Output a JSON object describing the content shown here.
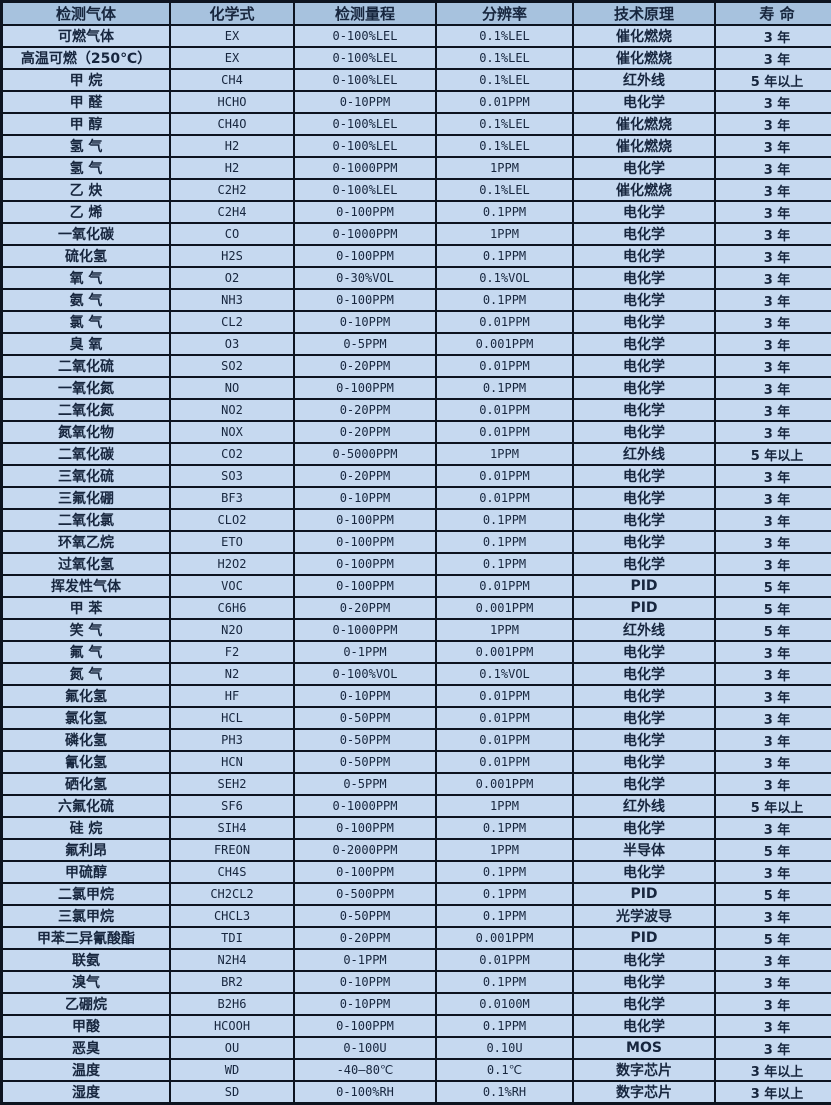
{
  "colors": {
    "row_background": "#c6d9f0",
    "header_background": "#a7c2de",
    "border": "#0d1420",
    "text": "#17263e"
  },
  "table": {
    "columns": [
      "检测气体",
      "化学式",
      "检测量程",
      "分辨率",
      "技术原理",
      "寿 命"
    ],
    "rows": [
      [
        "可燃气体",
        "EX",
        "0-100%LEL",
        "0.1%LEL",
        "催化燃烧",
        "3 年"
      ],
      [
        "高温可燃（250℃）",
        "EX",
        "0-100%LEL",
        "0.1%LEL",
        "催化燃烧",
        "3 年"
      ],
      [
        "甲 烷",
        "CH4",
        "0-100%LEL",
        "0.1%LEL",
        "红外线",
        "5 年以上"
      ],
      [
        "甲 醛",
        "HCHO",
        "0-10PPM",
        "0.01PPM",
        "电化学",
        "3 年"
      ],
      [
        "甲 醇",
        "CH4O",
        "0-100%LEL",
        "0.1%LEL",
        "催化燃烧",
        "3 年"
      ],
      [
        "氢 气",
        "H2",
        "0-100%LEL",
        "0.1%LEL",
        "催化燃烧",
        "3 年"
      ],
      [
        "氢 气",
        "H2",
        "0-1000PPM",
        "1PPM",
        "电化学",
        "3 年"
      ],
      [
        "乙 炔",
        "C2H2",
        "0-100%LEL",
        "0.1%LEL",
        "催化燃烧",
        "3 年"
      ],
      [
        "乙 烯",
        "C2H4",
        "0-100PPM",
        "0.1PPM",
        "电化学",
        "3 年"
      ],
      [
        "一氧化碳",
        "CO",
        "0-1000PPM",
        "1PPM",
        "电化学",
        "3 年"
      ],
      [
        "硫化氢",
        "H2S",
        "0-100PPM",
        "0.1PPM",
        "电化学",
        "3 年"
      ],
      [
        "氧 气",
        "O2",
        "0-30%VOL",
        "0.1%VOL",
        "电化学",
        "3 年"
      ],
      [
        "氨 气",
        "NH3",
        "0-100PPM",
        "0.1PPM",
        "电化学",
        "3 年"
      ],
      [
        "氯 气",
        "CL2",
        "0-10PPM",
        "0.01PPM",
        "电化学",
        "3 年"
      ],
      [
        "臭 氧",
        "O3",
        "0-5PPM",
        "0.001PPM",
        "电化学",
        "3 年"
      ],
      [
        "二氧化硫",
        "SO2",
        "0-20PPM",
        "0.01PPM",
        "电化学",
        "3 年"
      ],
      [
        "一氧化氮",
        "NO",
        "0-100PPM",
        "0.1PPM",
        "电化学",
        "3 年"
      ],
      [
        "二氧化氮",
        "NO2",
        "0-20PPM",
        "0.01PPM",
        "电化学",
        "3 年"
      ],
      [
        "氮氧化物",
        "NOX",
        "0-20PPM",
        "0.01PPM",
        "电化学",
        "3 年"
      ],
      [
        "二氧化碳",
        "CO2",
        "0-5000PPM",
        "1PPM",
        "红外线",
        "5 年以上"
      ],
      [
        "三氧化硫",
        "SO3",
        "0-20PPM",
        "0.01PPM",
        "电化学",
        "3 年"
      ],
      [
        "三氟化硼",
        "BF3",
        "0-10PPM",
        "0.01PPM",
        "电化学",
        "3 年"
      ],
      [
        "二氧化氯",
        "CLO2",
        "0-100PPM",
        "0.1PPM",
        "电化学",
        "3 年"
      ],
      [
        "环氧乙烷",
        "ETO",
        "0-100PPM",
        "0.1PPM",
        "电化学",
        "3 年"
      ],
      [
        "过氧化氢",
        "H2O2",
        "0-100PPM",
        "0.1PPM",
        "电化学",
        "3 年"
      ],
      [
        "挥发性气体",
        "VOC",
        "0-100PPM",
        "0.01PPM",
        "PID",
        "5 年"
      ],
      [
        "甲 苯",
        "C6H6",
        "0-20PPM",
        "0.001PPM",
        "PID",
        "5 年"
      ],
      [
        "笑 气",
        "N2O",
        "0-1000PPM",
        "1PPM",
        "红外线",
        "5 年"
      ],
      [
        "氟 气",
        "F2",
        "0-1PPM",
        "0.001PPM",
        "电化学",
        "3 年"
      ],
      [
        "氮 气",
        "N2",
        "0-100%VOL",
        "0.1%VOL",
        "电化学",
        "3 年"
      ],
      [
        "氟化氢",
        "HF",
        "0-10PPM",
        "0.01PPM",
        "电化学",
        "3 年"
      ],
      [
        "氯化氢",
        "HCL",
        "0-50PPM",
        "0.01PPM",
        "电化学",
        "3 年"
      ],
      [
        "磷化氢",
        "PH3",
        "0-50PPM",
        "0.01PPM",
        "电化学",
        "3 年"
      ],
      [
        "氰化氢",
        "HCN",
        "0-50PPM",
        "0.01PPM",
        "电化学",
        "3 年"
      ],
      [
        "硒化氢",
        "SEH2",
        "0-5PPM",
        "0.001PPM",
        "电化学",
        "3 年"
      ],
      [
        "六氟化硫",
        "SF6",
        "0-1000PPM",
        "1PPM",
        "红外线",
        "5 年以上"
      ],
      [
        "硅 烷",
        "SIH4",
        "0-100PPM",
        "0.1PPM",
        "电化学",
        "3 年"
      ],
      [
        "氟利昂",
        "FREON",
        "0-2000PPM",
        "1PPM",
        "半导体",
        "5 年"
      ],
      [
        "甲硫醇",
        "CH4S",
        "0-100PPM",
        "0.1PPM",
        "电化学",
        "3 年"
      ],
      [
        "二氯甲烷",
        "CH2CL2",
        "0-500PPM",
        "0.1PPM",
        "PID",
        "5 年"
      ],
      [
        "三氯甲烷",
        "CHCL3",
        "0-50PPM",
        "0.1PPM",
        "光学波导",
        "3 年"
      ],
      [
        "甲苯二异氰酸酯",
        "TDI",
        "0-20PPM",
        "0.001PPM",
        "PID",
        "5 年"
      ],
      [
        "联氨",
        "N2H4",
        "0-1PPM",
        "0.01PPM",
        "电化学",
        "3 年"
      ],
      [
        "溴气",
        "BR2",
        "0-10PPM",
        "0.1PPM",
        "电化学",
        "3 年"
      ],
      [
        "乙硼烷",
        "B2H6",
        "0-10PPM",
        "0.0100M",
        "电化学",
        "3 年"
      ],
      [
        "甲酸",
        "HCOOH",
        "0-100PPM",
        "0.1PPM",
        "电化学",
        "3 年"
      ],
      [
        "恶臭",
        "OU",
        "0-100U",
        "0.10U",
        "MOS",
        "3 年"
      ],
      [
        "温度",
        "WD",
        "-40—80℃",
        "0.1℃",
        "数字芯片",
        "3 年以上"
      ],
      [
        "湿度",
        "SD",
        "0-100%RH",
        "0.1%RH",
        "数字芯片",
        "3 年以上"
      ]
    ]
  }
}
